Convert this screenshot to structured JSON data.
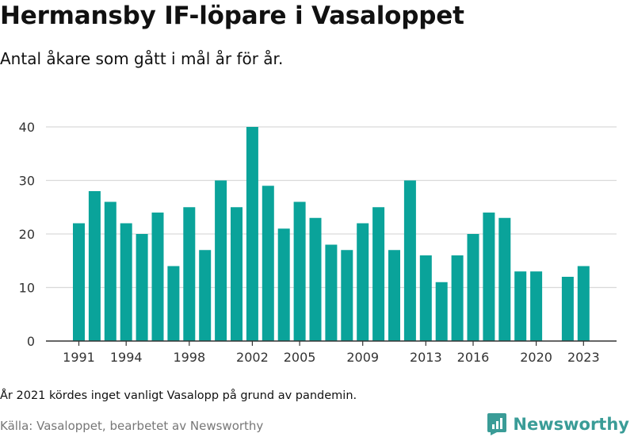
{
  "header": {
    "title": "Hermansby IF-löpare i Vasaloppet",
    "subtitle": "Antal åkare som gått i mål år för år."
  },
  "footer": {
    "note": "År 2021 kördes inget vanligt Vasalopp på grund av pandemin.",
    "source": "Källa: Vasaloppet, bearbetet av Newsworthy",
    "brand_name": "Newsworthy",
    "brand_icon": "bar-chart-logo-icon"
  },
  "colors": {
    "bar": "#0aa39a",
    "gridline": "#d9d9d9",
    "axis": "#333333",
    "brand": "#3a9c97"
  },
  "chart_data": {
    "type": "bar",
    "categories": [
      1991,
      1992,
      1993,
      1994,
      1995,
      1996,
      1997,
      1998,
      1999,
      2000,
      2001,
      2002,
      2003,
      2004,
      2005,
      2006,
      2007,
      2008,
      2009,
      2010,
      2011,
      2012,
      2013,
      2014,
      2015,
      2016,
      2017,
      2018,
      2019,
      2020,
      2021,
      2022,
      2023
    ],
    "values": [
      22,
      28,
      26,
      22,
      20,
      24,
      14,
      25,
      17,
      30,
      25,
      40,
      29,
      21,
      26,
      23,
      18,
      17,
      22,
      25,
      17,
      30,
      16,
      11,
      16,
      20,
      24,
      23,
      13,
      13,
      null,
      12,
      14
    ],
    "x_tick_labels": [
      "1991",
      "1994",
      "1998",
      "2002",
      "2005",
      "2009",
      "2013",
      "2016",
      "2020",
      "2023"
    ],
    "y_ticks": [
      0,
      10,
      20,
      30,
      40
    ],
    "ylim": [
      0,
      40
    ],
    "grid": true
  }
}
